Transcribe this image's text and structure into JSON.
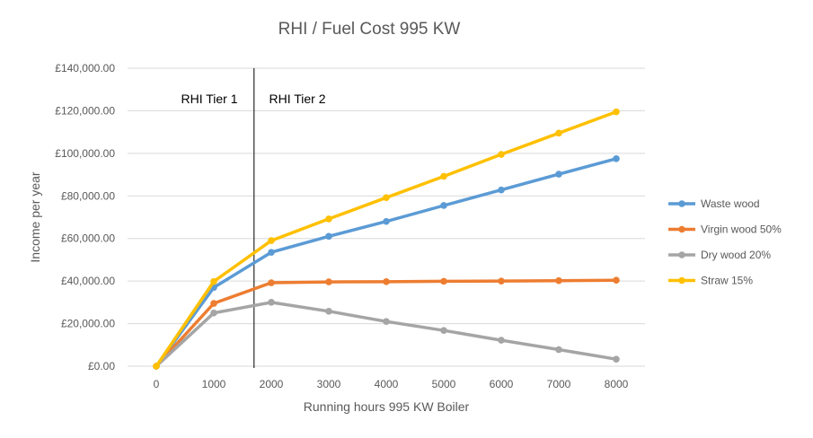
{
  "chart_data": {
    "type": "line",
    "title": "RHI / Fuel Cost 995 KW",
    "xlabel": "Running hours 995 KW Boiler",
    "ylabel": "Income per year",
    "x": [
      0,
      1000,
      2000,
      3000,
      4000,
      5000,
      6000,
      7000,
      8000
    ],
    "x_tick_labels": [
      "0",
      "1000",
      "2000",
      "3000",
      "4000",
      "5000",
      "6000",
      "7000",
      "8000"
    ],
    "ylim": [
      0,
      140000
    ],
    "y_ticks": [
      0,
      20000,
      40000,
      60000,
      80000,
      100000,
      120000,
      140000
    ],
    "y_tick_labels": [
      "£0.00",
      "£20,000.00",
      "£40,000.00",
      "£60,000.00",
      "£80,000.00",
      "£100,000.00",
      "£120,000.00",
      "£140,000.00"
    ],
    "grid": "horizontal",
    "legend_position": "right",
    "series": [
      {
        "name": "Waste wood",
        "color": "#5B9BD5",
        "values": [
          0,
          37000,
          53500,
          61000,
          68000,
          75500,
          82800,
          90200,
          97500
        ]
      },
      {
        "name": "Virgin wood 50%",
        "color": "#ED7D31",
        "values": [
          0,
          29500,
          39200,
          39600,
          39700,
          39900,
          40000,
          40200,
          40400
        ]
      },
      {
        "name": "Dry wood 20%",
        "color": "#A5A5A5",
        "values": [
          0,
          25000,
          30000,
          25800,
          21000,
          16800,
          12200,
          7800,
          3300
        ]
      },
      {
        "name": "Straw 15%",
        "color": "#FFC000",
        "values": [
          0,
          39800,
          59000,
          69200,
          79200,
          89200,
          99500,
          109500,
          119500
        ]
      }
    ],
    "annotations": [
      {
        "type": "vline",
        "x": 1700,
        "color": "#000000"
      },
      {
        "type": "text",
        "text": "RHI Tier 1"
      },
      {
        "type": "text",
        "text": "RHI Tier 2"
      }
    ]
  }
}
